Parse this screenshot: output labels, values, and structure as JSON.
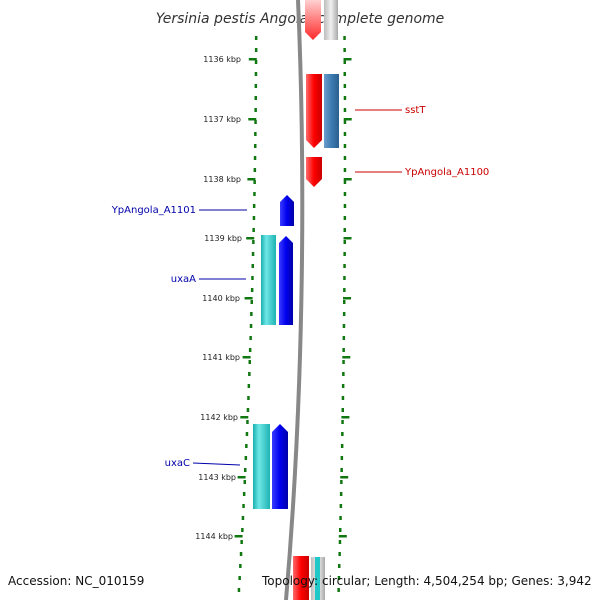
{
  "title": "Yersinia pestis Angola, complete genome",
  "footer": {
    "accession": "Accession: NC_010159",
    "summary": "Topology: circular; Length: 4,504,254 bp; Genes: 3,942"
  },
  "scale_labels": [
    "1136 kbp",
    "1137 kbp",
    "1138 kbp",
    "1139 kbp",
    "1140 kbp",
    "1141 kbp",
    "1142 kbp",
    "1143 kbp",
    "1144 kbp"
  ],
  "colors": {
    "forward_strand": "#ff0000",
    "forward_strand_alt": "#3d7bb0",
    "reverse_strand": "#0000ee",
    "reverse_strand_alt": "#20c8c8",
    "ruler_ticks": "#117711",
    "backbone": "#888888",
    "forward_label": "#cc0000",
    "reverse_label": "#0000aa"
  },
  "genes": [
    {
      "name": "sstT",
      "strand": "forward"
    },
    {
      "name": "YpAngola_A1100",
      "strand": "forward"
    },
    {
      "name": "YpAngola_A1101",
      "strand": "reverse"
    },
    {
      "name": "uxaA",
      "strand": "reverse"
    },
    {
      "name": "uxaC",
      "strand": "reverse"
    }
  ]
}
